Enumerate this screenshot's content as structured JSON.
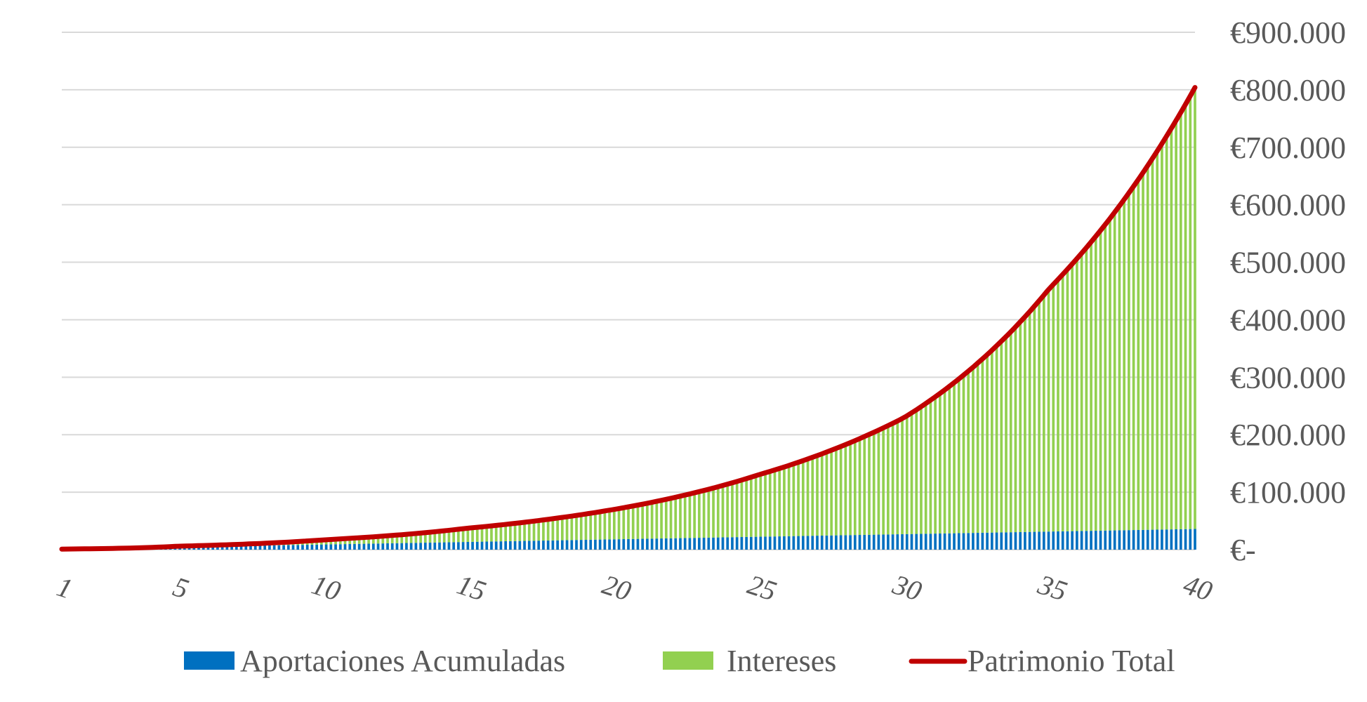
{
  "chart_data": {
    "type": "bar",
    "stacked": true,
    "x_label_ticks": [
      "1",
      "5",
      "10",
      "15",
      "20",
      "25",
      "30",
      "35",
      "40"
    ],
    "x_range": [
      1,
      40
    ],
    "y_ticks": [
      "€-",
      "€100.000",
      "€200.000",
      "€300.000",
      "€400.000",
      "€500.000",
      "€600.000",
      "€700.000",
      "€800.000",
      "€900.000"
    ],
    "ylim": [
      0,
      900000
    ],
    "y_axis_position": "right",
    "grid": true,
    "legend_position": "bottom",
    "series": [
      {
        "name": "Aportaciones Acumuladas",
        "kind": "bar",
        "color": "#0070c0",
        "x": [
          1,
          5,
          10,
          15,
          20,
          25,
          30,
          35,
          40
        ],
        "values": [
          1000,
          4500,
          9000,
          13500,
          18000,
          22500,
          27000,
          31500,
          36000
        ]
      },
      {
        "name": "Intereses",
        "kind": "bar",
        "color": "#92d050",
        "x": [
          1,
          5,
          10,
          15,
          20,
          25,
          30,
          35,
          40
        ],
        "values": [
          0,
          1500,
          8000,
          24000,
          52000,
          108000,
          203000,
          423500,
          768000
        ]
      },
      {
        "name": "Patrimonio Total",
        "kind": "line",
        "color": "#c00000",
        "x": [
          1,
          5,
          10,
          15,
          20,
          25,
          30,
          35,
          40
        ],
        "values": [
          1000,
          6000,
          17000,
          37500,
          70000,
          130500,
          230000,
          455000,
          804000
        ]
      }
    ]
  }
}
